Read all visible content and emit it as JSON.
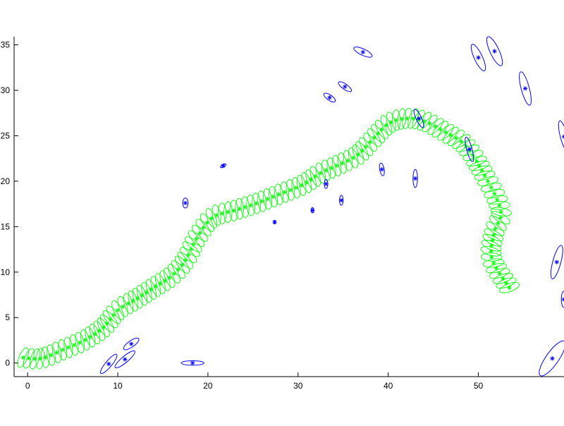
{
  "chart_data": {
    "type": "scatter",
    "title": "",
    "xlabel": "",
    "ylabel": "",
    "xlim": [
      -1.5,
      59.5
    ],
    "ylim": [
      -1.5,
      35.9
    ],
    "x_ticks": [
      0,
      10,
      20,
      30,
      40,
      50
    ],
    "y_ticks": [
      0,
      5,
      10,
      15,
      20,
      25,
      30,
      35
    ],
    "x_tick_labels": [
      "0",
      "10",
      "20",
      "30",
      "40",
      "50"
    ],
    "y_tick_labels": [
      "0",
      "5",
      "10",
      "15",
      "20",
      "25",
      "30",
      "35"
    ],
    "grid": false,
    "box": "left-bottom",
    "colors": {
      "trajectory": "#00ff00",
      "landmarks": "#0000ff",
      "axes": "#000000"
    },
    "trajectory": {
      "marker": "*",
      "ellipse_rx": 0.45,
      "ellipse_ry": 1.15,
      "waypoints": [
        [
          -0.5,
          0.6
        ],
        [
          1.5,
          0.5
        ],
        [
          4,
          1.5
        ],
        [
          6.5,
          2.6
        ],
        [
          8.5,
          4.0
        ],
        [
          10,
          5.8
        ],
        [
          12,
          7.0
        ],
        [
          14,
          8.3
        ],
        [
          16,
          9.6
        ],
        [
          17.5,
          11.3
        ],
        [
          18.8,
          13.8
        ],
        [
          20.5,
          16.0
        ],
        [
          23,
          16.8
        ],
        [
          25.5,
          17.6
        ],
        [
          28,
          18.6
        ],
        [
          30.5,
          19.6
        ],
        [
          32.5,
          20.9
        ],
        [
          34.5,
          21.8
        ],
        [
          36.5,
          22.8
        ],
        [
          38,
          24.3
        ],
        [
          40,
          26.3
        ],
        [
          42,
          26.9
        ],
        [
          44,
          26.6
        ],
        [
          46.5,
          25.3
        ],
        [
          48.5,
          24.0
        ],
        [
          50.5,
          21.0
        ],
        [
          52.5,
          16.8
        ],
        [
          51.8,
          14.5
        ],
        [
          51.5,
          11.5
        ],
        [
          53.5,
          8.2
        ]
      ]
    },
    "landmarks": [
      {
        "x": 9,
        "y": -0.1,
        "rx": 0.35,
        "ry": 1.35,
        "angle": 40
      },
      {
        "x": 10.8,
        "y": 0.4,
        "rx": 0.35,
        "ry": 1.4,
        "angle": 50
      },
      {
        "x": 11.5,
        "y": 2.1,
        "rx": 0.35,
        "ry": 1.0,
        "angle": 55
      },
      {
        "x": 18.3,
        "y": 0.0,
        "rx": 0.25,
        "ry": 1.25,
        "angle": 90
      },
      {
        "x": 17.5,
        "y": 17.6,
        "rx": 0.3,
        "ry": 0.55,
        "angle": 0
      },
      {
        "x": 21.7,
        "y": 21.7,
        "rx": 0.15,
        "ry": 0.35,
        "angle": 60
      },
      {
        "x": 27.4,
        "y": 15.5,
        "rx": 0.1,
        "ry": 0.2,
        "angle": 0
      },
      {
        "x": 31.6,
        "y": 16.8,
        "rx": 0.15,
        "ry": 0.3,
        "angle": 0
      },
      {
        "x": 33.1,
        "y": 19.7,
        "rx": 0.2,
        "ry": 0.5,
        "angle": 0
      },
      {
        "x": 34.8,
        "y": 17.9,
        "rx": 0.2,
        "ry": 0.55,
        "angle": 0
      },
      {
        "x": 33.5,
        "y": 29.2,
        "rx": 0.3,
        "ry": 0.75,
        "angle": -55
      },
      {
        "x": 35.2,
        "y": 30.4,
        "rx": 0.3,
        "ry": 0.85,
        "angle": -55
      },
      {
        "x": 37.2,
        "y": 34.2,
        "rx": 0.35,
        "ry": 1.1,
        "angle": -65
      },
      {
        "x": 39.3,
        "y": 21.3,
        "rx": 0.25,
        "ry": 0.7,
        "angle": -10
      },
      {
        "x": 43.0,
        "y": 20.3,
        "rx": 0.25,
        "ry": 1.0,
        "angle": 0
      },
      {
        "x": 43.4,
        "y": 26.9,
        "rx": 0.3,
        "ry": 1.1,
        "angle": -25
      },
      {
        "x": 49.0,
        "y": 23.5,
        "rx": 0.3,
        "ry": 1.4,
        "angle": -15
      },
      {
        "x": 50.0,
        "y": 33.6,
        "rx": 0.45,
        "ry": 1.6,
        "angle": -25
      },
      {
        "x": 51.8,
        "y": 34.3,
        "rx": 0.5,
        "ry": 1.75,
        "angle": -25
      },
      {
        "x": 55.2,
        "y": 30.2,
        "rx": 0.45,
        "ry": 1.9,
        "angle": -15
      },
      {
        "x": 58.7,
        "y": 11.1,
        "rx": 0.45,
        "ry": 1.9,
        "angle": 15
      },
      {
        "x": 58.2,
        "y": 0.5,
        "rx": 0.7,
        "ry": 2.3,
        "angle": 35
      },
      {
        "x": 59.5,
        "y": 24.9,
        "rx": 0.4,
        "ry": 1.8,
        "angle": -15
      },
      {
        "x": 59.5,
        "y": 7.0,
        "rx": 0.3,
        "ry": 0.9,
        "angle": 0
      }
    ]
  }
}
